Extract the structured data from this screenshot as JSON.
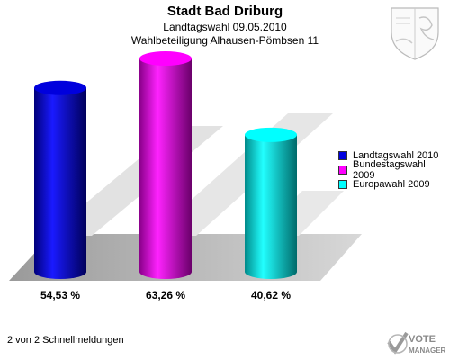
{
  "header": {
    "title": "Stadt Bad Driburg",
    "subtitle1": "Landtagswahl 09.05.2010",
    "subtitle2": "Wahlbeteiligung Alhausen-Pömbsen 11"
  },
  "legend": [
    {
      "label": "Landtagswahl 2010",
      "color": "#0000dd"
    },
    {
      "label": "Bundestagswahl 2009",
      "color": "#ff00ff"
    },
    {
      "label": "Europawahl 2009",
      "color": "#00ffff"
    }
  ],
  "footer": {
    "text": "2 von 2 Schnellmeldungen"
  },
  "logo": {
    "line1": "VOTE",
    "line2": "MANAGER"
  },
  "chart_data": {
    "type": "bar",
    "categories": [
      "Landtagswahl 2010",
      "Bundestagswahl 2009",
      "Europawahl 2009"
    ],
    "values": [
      54.53,
      63.26,
      40.62
    ],
    "value_labels": [
      "54,53 %",
      "63,26 %",
      "40,62 %"
    ],
    "colors": [
      "#0000dd",
      "#ff00ff",
      "#00ffff"
    ],
    "title": "Stadt Bad Driburg",
    "ylim": [
      0,
      63.26
    ],
    "legend_position": "right"
  }
}
